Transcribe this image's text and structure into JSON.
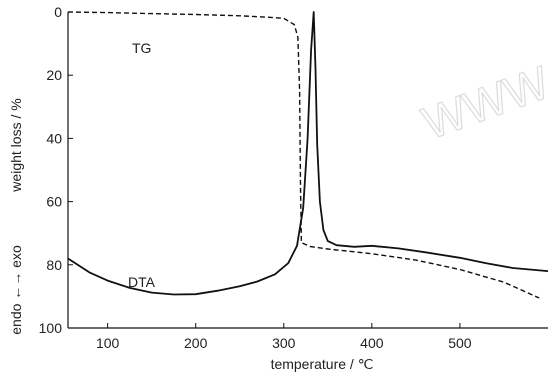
{
  "chart_data": {
    "type": "line",
    "xlabel": "temperature / ℃",
    "ylabel": "weight loss / %",
    "ylabel_secondary": "endo ←→ exo",
    "xlim": [
      55,
      600
    ],
    "ylim": [
      0,
      100
    ],
    "y_inverted": true,
    "x_ticks": [
      100,
      200,
      300,
      400,
      500
    ],
    "y_ticks": [
      0,
      20,
      40,
      60,
      80,
      100
    ],
    "grid": false,
    "watermark": "WWW",
    "series": [
      {
        "name": "TG",
        "style": "dashed",
        "color": "#111111",
        "x": [
          55,
          100,
          150,
          200,
          250,
          280,
          300,
          312,
          316,
          318,
          319,
          320,
          330,
          350,
          400,
          450,
          500,
          550,
          590
        ],
        "y": [
          0,
          0.2,
          0.5,
          0.8,
          1.2,
          1.6,
          2.0,
          4.0,
          8.0,
          25.0,
          55.0,
          73.0,
          74.2,
          75.0,
          76.5,
          78.5,
          81.5,
          85.5,
          90.5
        ]
      },
      {
        "name": "DTA",
        "style": "solid",
        "color": "#111111",
        "x": [
          55,
          80,
          100,
          125,
          150,
          175,
          200,
          225,
          250,
          270,
          290,
          305,
          315,
          322,
          327,
          331,
          334,
          336,
          338,
          341,
          345,
          350,
          360,
          380,
          400,
          430,
          460,
          500,
          530,
          560,
          600
        ],
        "y": [
          78,
          82.5,
          85.0,
          87.3,
          88.8,
          89.4,
          89.3,
          88.2,
          86.8,
          85.3,
          83.0,
          79.5,
          74.0,
          62.0,
          40.0,
          12.0,
          0.0,
          18.0,
          42.0,
          60.0,
          69.0,
          72.5,
          73.8,
          74.3,
          74.0,
          74.8,
          76.0,
          77.8,
          79.5,
          81.0,
          82.0
        ]
      }
    ],
    "annotations": [
      {
        "text": "TG",
        "series": "TG"
      },
      {
        "text": "DTA",
        "series": "DTA"
      }
    ]
  }
}
